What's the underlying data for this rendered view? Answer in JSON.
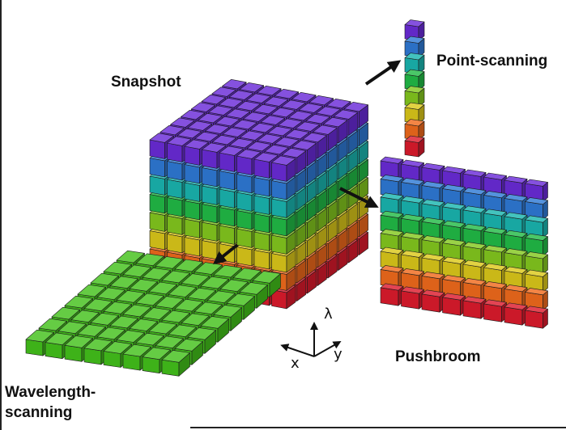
{
  "labels": {
    "snapshot": "Snapshot",
    "point_scanning": "Point-scanning",
    "pushbroom": "Pushbroom",
    "wavelength_line1": "Wavelength-",
    "wavelength_line2": "scanning"
  },
  "axes": {
    "lambda": "λ",
    "x": "x",
    "y": "y"
  },
  "band_colors": [
    "#dd1b2d",
    "#f06a1c",
    "#dcc81a",
    "#84c81e",
    "#22bb47",
    "#1ab6b0",
    "#2f7ad6",
    "#6a2bd8"
  ],
  "slice_color": "#43c11b"
}
